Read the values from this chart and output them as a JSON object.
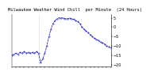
{
  "title": "Milwaukee Weather Wind Chill  per Minute  (24 Hours)",
  "x_minutes": [
    0,
    30,
    60,
    90,
    120,
    150,
    180,
    210,
    240,
    270,
    300,
    330,
    360,
    390,
    420,
    450,
    480,
    510,
    540,
    570,
    600,
    630,
    660,
    690,
    720,
    750,
    780,
    810,
    840,
    870,
    900,
    930,
    960,
    990,
    1020,
    1050,
    1080,
    1110,
    1140,
    1170,
    1200,
    1230,
    1260,
    1290,
    1320,
    1350,
    1380,
    1410,
    1440
  ],
  "y_values": [
    -15,
    -14.5,
    -14,
    -14.5,
    -13.5,
    -14,
    -13,
    -14,
    -13.5,
    -14,
    -13.5,
    -14,
    -13,
    -14,
    -19,
    -17,
    -14,
    -10,
    -5,
    -1,
    2,
    3.5,
    4.5,
    5,
    5,
    4.8,
    4.5,
    4.5,
    4.8,
    4.5,
    4.2,
    3.5,
    3,
    2,
    0,
    -1,
    -2,
    -3,
    -4,
    -5,
    -6,
    -6.5,
    -7,
    -8,
    -8.5,
    -9,
    -10,
    -10.5,
    -11
  ],
  "line_color": "#0000cc",
  "background_color": "#ffffff",
  "vline_x": 390,
  "vline_color": "#999999",
  "ylim": [
    -21,
    7
  ],
  "xlim": [
    0,
    1440
  ],
  "title_fontsize": 4.0,
  "tick_fontsize": 3.5,
  "yticks": [
    5,
    0,
    -5,
    -10,
    -15,
    -20
  ],
  "xtick_interval": 60
}
